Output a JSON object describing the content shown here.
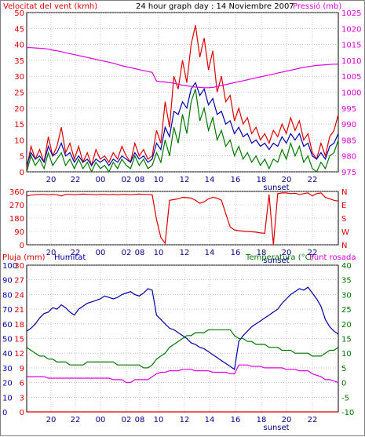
{
  "header": {
    "left_title": "Velocitat del vent (kmh)",
    "center_title": "24 hour graph day : 14 Noviembre 2007",
    "right_title": "Pressió (mb)"
  },
  "colors": {
    "red": "#dd0000",
    "blue": "#0000aa",
    "green": "#007700",
    "magenta": "#dd00dd",
    "grid": "#a0a0a0",
    "frame": "#000000"
  },
  "sunset_label": "sunset",
  "chart_data": [
    {
      "type": "line",
      "name": "wind-and-pressure",
      "title": "24 hour graph day : 14 Noviembre 2007",
      "ylabel": "Velocitat del vent (kmh)",
      "y2label": "Pressió (mb)",
      "ylim": [
        0,
        50
      ],
      "y2lim": [
        975,
        1025
      ],
      "yticks": [
        0,
        5,
        10,
        15,
        20,
        25,
        30,
        35,
        40,
        45,
        50
      ],
      "y2ticks": [
        975,
        980,
        985,
        990,
        995,
        1000,
        1005,
        1010,
        1015,
        1020,
        1025
      ],
      "x_tick_labels": [
        "20",
        "22",
        "00",
        "02",
        "08",
        "10",
        "12",
        "14",
        "16",
        "18",
        "20",
        "22"
      ],
      "series": [
        {
          "color": "#dd0000",
          "axis": "left",
          "values": [
            1,
            8,
            4,
            7,
            3,
            11,
            5,
            8,
            14,
            6,
            9,
            4,
            8,
            3,
            6,
            2,
            7,
            4,
            5,
            3,
            6,
            4,
            8,
            5,
            3,
            9,
            5,
            7,
            4,
            5,
            13,
            9,
            22,
            14,
            30,
            26,
            35,
            28,
            40,
            46,
            36,
            42,
            32,
            38,
            25,
            30,
            22,
            24,
            16,
            20,
            15,
            17,
            12,
            14,
            10,
            12,
            9,
            13,
            11,
            15,
            12,
            17,
            13,
            16,
            10,
            12,
            6,
            4,
            9,
            5,
            11,
            13,
            18
          ]
        },
        {
          "color": "#0000aa",
          "axis": "left",
          "values": [
            2,
            6,
            4,
            5,
            3,
            8,
            5,
            6,
            9,
            5,
            6,
            3,
            5,
            3,
            4,
            2,
            4,
            3,
            4,
            2,
            4,
            3,
            5,
            4,
            3,
            6,
            4,
            5,
            3,
            4,
            9,
            7,
            14,
            11,
            19,
            18,
            22,
            20,
            26,
            28,
            24,
            26,
            21,
            23,
            18,
            19,
            15,
            16,
            12,
            14,
            11,
            12,
            9,
            10,
            8,
            9,
            7,
            9,
            8,
            11,
            9,
            12,
            10,
            12,
            8,
            9,
            5,
            4,
            6,
            4,
            8,
            9,
            12
          ]
        },
        {
          "color": "#007700",
          "axis": "left",
          "values": [
            0,
            5,
            2,
            4,
            1,
            6,
            2,
            4,
            6,
            2,
            4,
            1,
            4,
            1,
            3,
            0,
            3,
            1,
            2,
            0,
            3,
            1,
            4,
            2,
            1,
            5,
            2,
            4,
            1,
            2,
            6,
            3,
            10,
            5,
            14,
            9,
            18,
            12,
            22,
            26,
            16,
            20,
            13,
            17,
            10,
            13,
            8,
            10,
            5,
            8,
            4,
            6,
            3,
            5,
            2,
            4,
            1,
            4,
            3,
            7,
            4,
            9,
            5,
            8,
            3,
            5,
            1,
            0,
            3,
            1,
            5,
            6,
            10
          ]
        },
        {
          "color": "#dd00dd",
          "axis": "right",
          "values": [
            1014,
            1014,
            1013.9,
            1013.8,
            1013.7,
            1013.5,
            1013.2,
            1013,
            1012.7,
            1012.4,
            1012.1,
            1011.8,
            1011.5,
            1011.2,
            1010.9,
            1010.6,
            1010.3,
            1010,
            1009.7,
            1009.4,
            1009.1,
            1008.7,
            1008.3,
            1008,
            1007.7,
            1007.4,
            1007.1,
            1006.8,
            1006.5,
            1006.2,
            1003.5,
            1003.3,
            1003.2,
            1003,
            1002.8,
            1002.5,
            1002.2,
            1002,
            1001.8,
            1001.6,
            1001.5,
            1001.4,
            1001.4,
            1001.5,
            1001.8,
            1002.1,
            1002.4,
            1002.7,
            1003,
            1003.3,
            1003.6,
            1003.9,
            1004.2,
            1004.5,
            1004.8,
            1005.1,
            1005.4,
            1005.7,
            1006,
            1006.3,
            1006.6,
            1006.9,
            1007.2,
            1007.5,
            1007.8,
            1008,
            1008.2,
            1008.4,
            1008.5,
            1008.6,
            1008.7,
            1008.8,
            1008.8
          ]
        }
      ]
    },
    {
      "type": "line",
      "name": "wind-direction",
      "ylim": [
        0,
        360
      ],
      "yticks": [
        0,
        90,
        180,
        270,
        360
      ],
      "y2tick_labels": [
        "N",
        "W",
        "S",
        "E",
        "N"
      ],
      "x_tick_labels": [
        "20",
        "22",
        "00",
        "02",
        "08",
        "10",
        "12",
        "14",
        "16",
        "18",
        "20",
        "22"
      ],
      "series": [
        {
          "color": "#dd0000",
          "values": [
            330,
            335,
            338,
            340,
            340,
            338,
            340,
            338,
            330,
            340,
            340,
            338,
            340,
            342,
            340,
            340,
            338,
            340,
            340,
            338,
            340,
            338,
            340,
            340,
            338,
            340,
            342,
            340,
            340,
            338,
            170,
            50,
            10,
            300,
            305,
            310,
            320,
            318,
            315,
            300,
            280,
            290,
            310,
            320,
            315,
            300,
            210,
            120,
            100,
            95,
            92,
            90,
            88,
            85,
            80,
            78,
            340,
            0,
            345,
            350,
            350,
            345,
            348,
            340,
            345,
            350,
            330,
            345,
            350,
            320,
            310,
            300,
            295
          ]
        }
      ]
    },
    {
      "type": "line",
      "name": "rain-humidity-temperature",
      "ylabel": "Pluja (mm)",
      "ylabel2": "Humitat",
      "y2label": "Temperatura (°C)",
      "y2label2": "Punt rosada",
      "ylim": [
        0,
        30
      ],
      "humidity_ylim": [
        0,
        100
      ],
      "y2lim": [
        -10,
        40
      ],
      "rain_ticks": [
        0,
        3,
        6,
        9,
        12,
        15,
        18,
        21,
        24,
        27,
        30
      ],
      "humidity_ticks": [
        0,
        10,
        20,
        30,
        40,
        50,
        60,
        70,
        80,
        90,
        100
      ],
      "y2ticks": [
        -10,
        -5,
        0,
        5,
        10,
        15,
        20,
        25,
        30,
        35,
        40
      ],
      "x_tick_labels": [
        "20",
        "22",
        "00",
        "02",
        "08",
        "10",
        "12",
        "14",
        "16",
        "18",
        "20",
        "22"
      ],
      "series": [
        {
          "color": "#dd0000",
          "axis": "rain",
          "values": [
            0,
            0,
            0,
            0,
            0,
            0,
            0,
            0,
            0,
            0,
            0,
            0,
            0,
            0,
            0,
            0,
            0,
            0,
            0,
            0,
            0,
            0,
            0,
            0,
            0,
            0,
            0,
            0,
            0,
            0,
            0,
            0,
            0,
            0,
            0,
            0,
            0,
            0,
            0,
            0,
            0,
            0,
            0,
            0,
            0,
            0,
            0,
            0,
            0,
            0,
            0,
            0,
            0,
            0,
            0,
            0,
            0,
            0,
            0,
            0,
            0,
            0,
            0,
            0,
            0,
            0,
            0,
            0,
            0,
            0,
            0,
            0,
            0
          ]
        },
        {
          "color": "#0000aa",
          "axis": "humidity",
          "values": [
            55,
            57,
            60,
            64,
            67,
            68,
            71,
            70,
            73,
            71,
            68,
            66,
            70,
            72,
            74,
            75,
            76,
            77,
            79,
            78,
            77,
            78,
            80,
            81,
            82,
            80,
            79,
            81,
            84,
            83,
            66,
            63,
            60,
            57,
            56,
            54,
            52,
            50,
            47,
            46,
            44,
            43,
            41,
            39,
            37,
            35,
            33,
            31,
            29,
            48,
            52,
            55,
            58,
            60,
            62,
            64,
            66,
            68,
            70,
            74,
            77,
            80,
            82,
            84,
            83,
            85,
            81,
            77,
            72,
            63,
            58,
            55,
            53
          ]
        },
        {
          "color": "#007700",
          "axis": "temp",
          "values": [
            12,
            11,
            10,
            9,
            9,
            8,
            8,
            7,
            7,
            7,
            6,
            6,
            6,
            6,
            7,
            7,
            7,
            7,
            7,
            7,
            7,
            6,
            6,
            6,
            6,
            6,
            6,
            5,
            5,
            6,
            8,
            9,
            10,
            12,
            13,
            14,
            15,
            16,
            16,
            17,
            17,
            17,
            18,
            18,
            18,
            18,
            18,
            18,
            16,
            15,
            15,
            14,
            14,
            13,
            13,
            13,
            12,
            12,
            12,
            11,
            11,
            11,
            10,
            10,
            10,
            10,
            9,
            9,
            9,
            10,
            11,
            11,
            12
          ]
        },
        {
          "color": "#dd00dd",
          "axis": "temp",
          "values": [
            2,
            2,
            2,
            2,
            2,
            1.5,
            1.5,
            1.5,
            1.5,
            1.5,
            1.5,
            1.5,
            1.5,
            1.5,
            1.5,
            1.5,
            1.5,
            1.5,
            1.5,
            1.5,
            1,
            1,
            1,
            0,
            0,
            1,
            1,
            1,
            1,
            2,
            3,
            3.5,
            3.5,
            4,
            4,
            4,
            4.5,
            4.5,
            4.5,
            4,
            4,
            4,
            4,
            3.5,
            3.5,
            3.5,
            3.5,
            3,
            3,
            6,
            6,
            6,
            5.5,
            5.5,
            5.5,
            5,
            5,
            5,
            5,
            5,
            4.5,
            4.5,
            4.5,
            4,
            4,
            4,
            3,
            2.5,
            2,
            1,
            1,
            0.5,
            0
          ]
        }
      ]
    }
  ]
}
